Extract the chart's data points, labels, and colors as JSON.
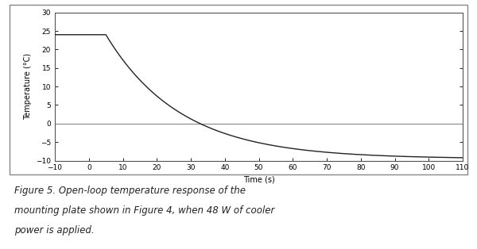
{
  "xlim": [
    -10,
    110
  ],
  "ylim": [
    -10,
    30
  ],
  "xticks": [
    -10,
    0,
    10,
    20,
    30,
    40,
    50,
    60,
    70,
    80,
    90,
    100,
    110
  ],
  "yticks": [
    -10,
    -5,
    0,
    5,
    10,
    15,
    20,
    25,
    30
  ],
  "xlabel": "Time (s)",
  "ylabel": "Temperature (°C)",
  "line_color": "#222222",
  "background_color": "#ffffff",
  "caption": "Figure 5. Open-loop temperature response of the\nmounting plate shown in Figure 4, when 48 W of cooler\npower is applied.",
  "initial_temp": 24.0,
  "final_temp": -9.5,
  "step_time": 5.0,
  "time_constant": 22.0,
  "outer_box_color": "#888888",
  "zero_line_color": "#888888",
  "border_line_color": "#aaaaaa"
}
